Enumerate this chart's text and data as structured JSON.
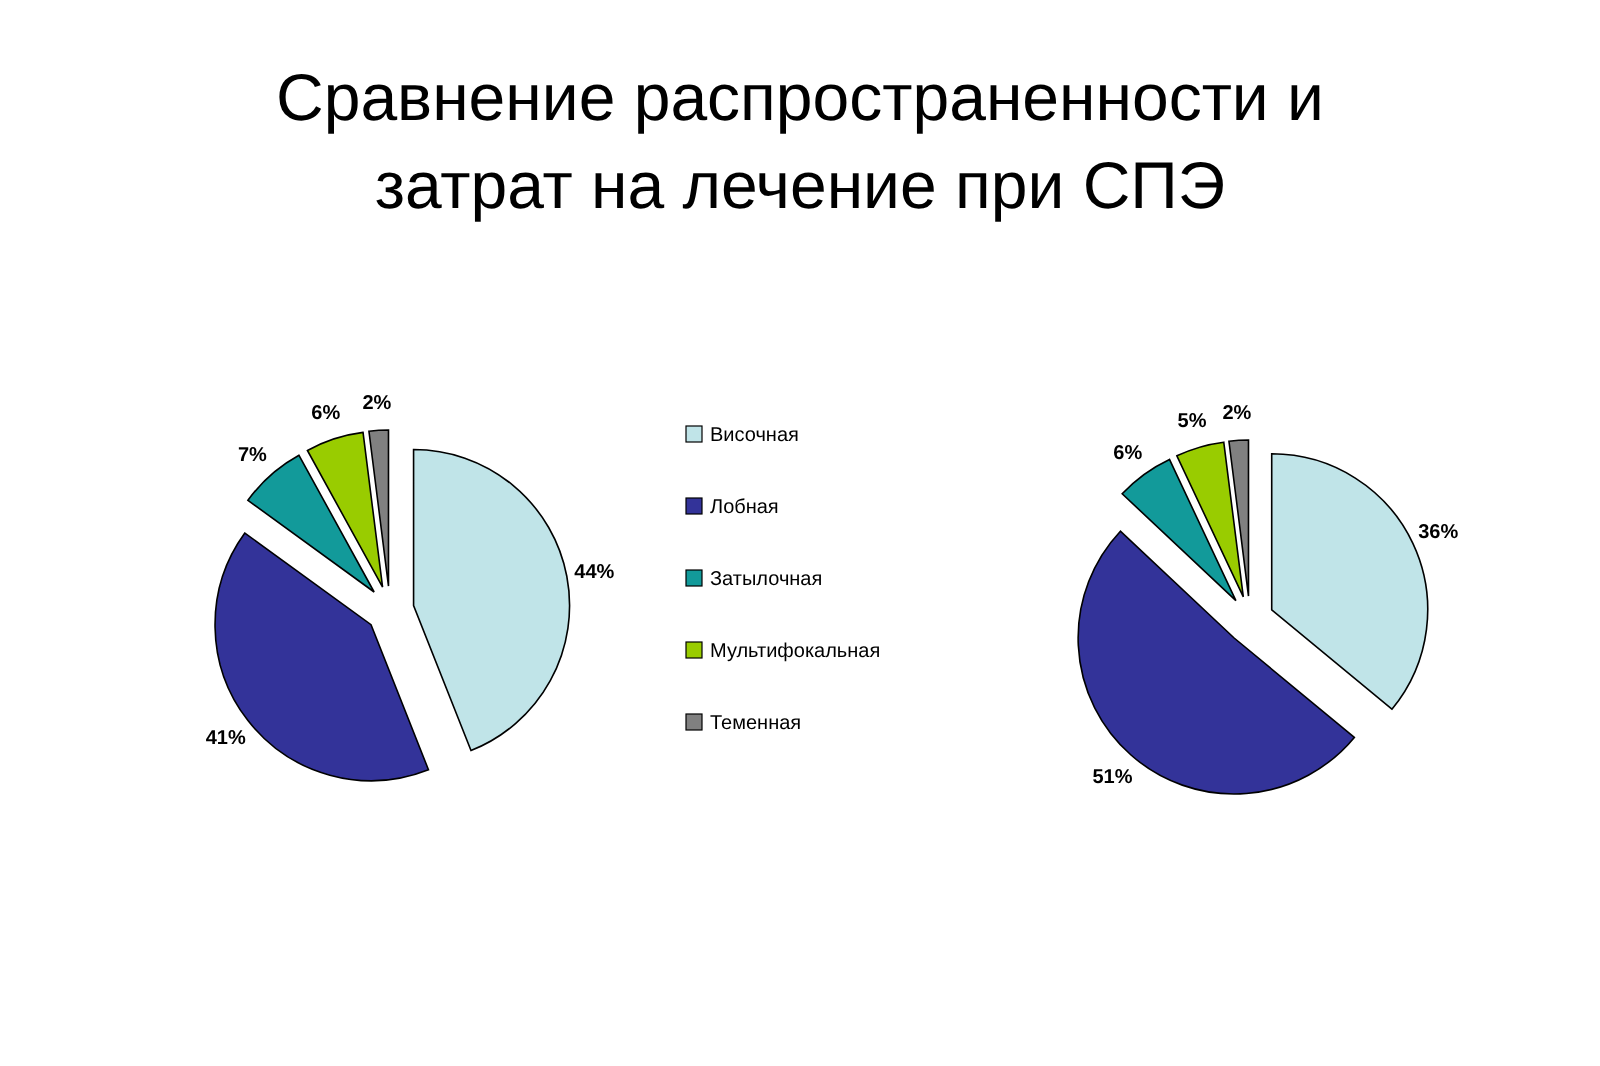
{
  "chart_data": {
    "type": "pie",
    "title": "Сравнение распространенности и затрат на лечение при СПЭ",
    "categories": [
      "Височная",
      "Лобная",
      "Затылочная",
      "Мультифокальная",
      "Теменная"
    ],
    "colors": [
      "#c0e4e8",
      "#333399",
      "#129a9a",
      "#99cc00",
      "#808080"
    ],
    "series": [
      {
        "values": [
          44,
          41,
          7,
          6,
          2
        ],
        "value_labels": [
          "44%",
          "41%",
          "7%",
          "6%",
          "2%"
        ]
      },
      {
        "values": [
          36,
          51,
          6,
          5,
          2
        ],
        "value_labels": [
          "36%",
          "51%",
          "6%",
          "5%",
          "2%"
        ]
      }
    ],
    "legend": "right"
  }
}
